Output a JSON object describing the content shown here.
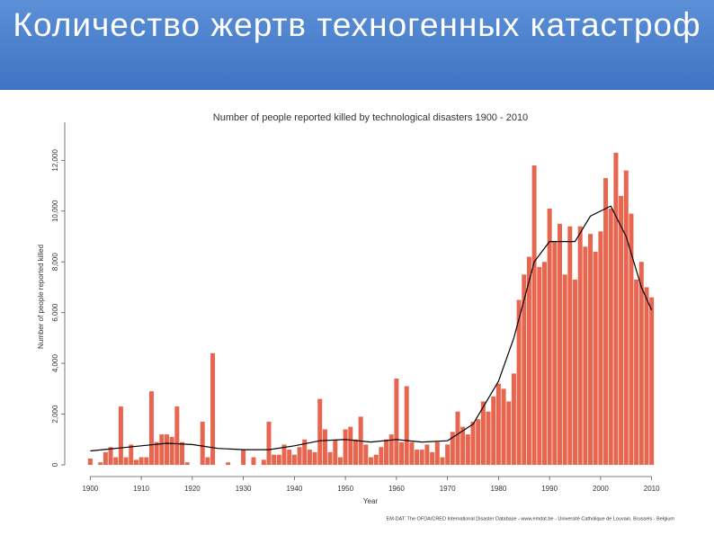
{
  "slide_title": "Количество жертв техногенных катастроф",
  "chart_data": {
    "type": "bar",
    "title": "Number of people reported killed by technological disasters 1900 - 2010",
    "x_label": "Year",
    "y_label": "Number of people reported killed",
    "source": "EM-DAT: The OFDA/CRED International Disaster Database - www.emdat.be - Université Catholique de Louvain, Brussels - Belgium",
    "x_start": 1900,
    "color": "#e8654f",
    "values": [
      250,
      0,
      100,
      500,
      700,
      300,
      2300,
      300,
      800,
      200,
      300,
      300,
      2900,
      900,
      1200,
      1200,
      1100,
      2300,
      900,
      100,
      0,
      0,
      1700,
      300,
      4400,
      0,
      0,
      100,
      0,
      0,
      600,
      0,
      300,
      0,
      200,
      1700,
      400,
      400,
      800,
      600,
      400,
      700,
      1000,
      600,
      500,
      2600,
      1400,
      500,
      1000,
      300,
      1400,
      1500,
      1000,
      1900,
      800,
      300,
      400,
      700,
      1000,
      1200,
      3400,
      900,
      3100,
      900,
      600,
      600,
      800,
      500,
      900,
      300,
      800,
      1300,
      2100,
      1500,
      1200,
      1700,
      1800,
      2500,
      2100,
      2700,
      3200,
      3000,
      2500,
      3600,
      6500,
      7500,
      8200,
      11800,
      7800,
      8000,
      10100,
      8800,
      9500,
      7500,
      9400,
      7300,
      9400,
      8600,
      9100,
      8400,
      9200,
      11300,
      10100,
      12300,
      10600,
      11600,
      9900,
      7300,
      8000,
      7000,
      6600
    ],
    "trend": {
      "color": "#000000",
      "x": [
        1900,
        1905,
        1910,
        1915,
        1920,
        1925,
        1930,
        1935,
        1940,
        1945,
        1950,
        1955,
        1960,
        1965,
        1970,
        1975,
        1980,
        1983,
        1985,
        1987,
        1990,
        1995,
        1998,
        2002,
        2005,
        2008,
        2010
      ],
      "values": [
        550,
        650,
        750,
        850,
        800,
        650,
        600,
        600,
        750,
        950,
        1000,
        900,
        1000,
        900,
        950,
        1600,
        3300,
        5000,
        6500,
        8000,
        8800,
        8800,
        9800,
        10200,
        9000,
        7000,
        6100
      ]
    },
    "xlim": [
      1898,
      2012
    ],
    "xticks": [
      1900,
      1910,
      1920,
      1930,
      1940,
      1950,
      1960,
      1970,
      1980,
      1990,
      2000,
      2010
    ],
    "ylim": [
      0,
      13500
    ],
    "yticks": [
      0,
      {
        "value": 2000,
        "label": "2,000"
      },
      {
        "value": 4000,
        "label": "4,000"
      },
      {
        "value": 6000,
        "label": "6,000"
      },
      {
        "value": 8000,
        "label": "8,000"
      },
      {
        "value": 10000,
        "label": "10,000"
      },
      {
        "value": 12000,
        "label": "12,000"
      }
    ]
  }
}
